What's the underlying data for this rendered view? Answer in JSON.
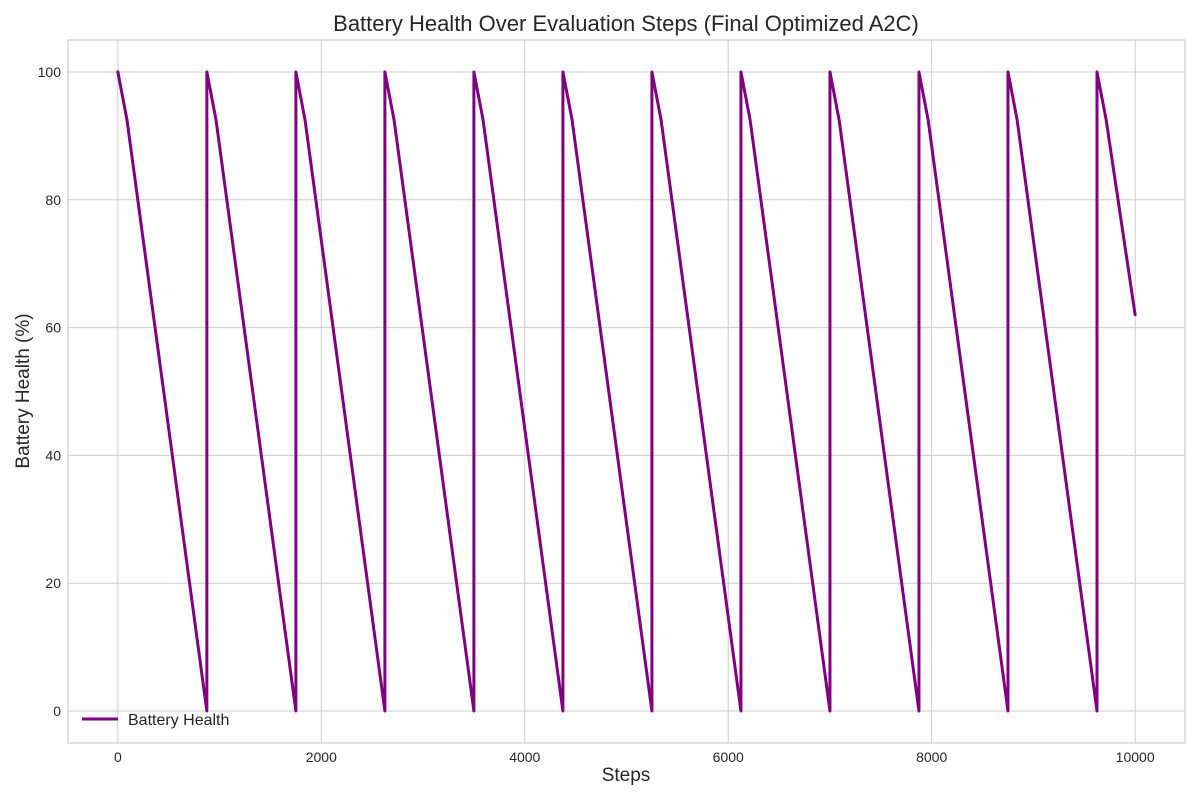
{
  "chart_data": {
    "type": "line",
    "title": "Battery Health Over Evaluation Steps (Final Optimized A2C)",
    "xlabel": "Steps",
    "ylabel": "Battery Health (%)",
    "xlim": [
      -490,
      10490
    ],
    "ylim": [
      -5,
      105
    ],
    "xticks": [
      0,
      2000,
      4000,
      6000,
      8000,
      10000
    ],
    "yticks": [
      0,
      20,
      40,
      60,
      80,
      100
    ],
    "grid": true,
    "legend_position": "lower-left",
    "series": [
      {
        "name": "Battery Health",
        "color": "#800080",
        "x": [
          0,
          90,
          875,
          875,
          965,
          1750,
          1750,
          1840,
          2625,
          2625,
          2715,
          3500,
          3500,
          3590,
          4375,
          4375,
          4465,
          5250,
          5250,
          5340,
          6125,
          6125,
          6215,
          7000,
          7000,
          7090,
          7875,
          7875,
          7965,
          8750,
          8750,
          8840,
          9625,
          9625,
          9715,
          10000
        ],
        "y": [
          100,
          92.5,
          0,
          100,
          92.5,
          0,
          100,
          92.5,
          0,
          100,
          92.5,
          0,
          100,
          92.5,
          0,
          100,
          92.5,
          0,
          100,
          92.5,
          0,
          100,
          92.5,
          0,
          100,
          92.5,
          0,
          100,
          92.5,
          0,
          100,
          92.5,
          0,
          100,
          92.5,
          62
        ]
      }
    ]
  }
}
